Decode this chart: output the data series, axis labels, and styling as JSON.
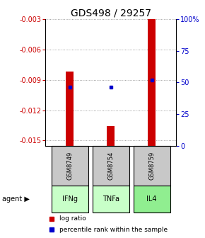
{
  "title": "GDS498 / 29257",
  "samples": [
    "GSM8749",
    "GSM8754",
    "GSM8759"
  ],
  "agents": [
    "IFNg",
    "TNFa",
    "IL4"
  ],
  "log_ratios": [
    -0.0082,
    -0.01355,
    -0.003
  ],
  "percentile_ranks": [
    46,
    46,
    52
  ],
  "ylim": [
    -0.0155,
    -0.003
  ],
  "yticks_left": [
    -0.003,
    -0.006,
    -0.009,
    -0.012,
    -0.015
  ],
  "yticks_right": [
    100,
    75,
    50,
    25,
    0
  ],
  "bar_color": "#cc0000",
  "dot_color": "#0000cc",
  "sample_box_color": "#c8c8c8",
  "agent_colors": [
    "#c8ffc8",
    "#c8ffc8",
    "#90ee90"
  ],
  "bar_width": 0.18,
  "title_fontsize": 10,
  "tick_fontsize": 7,
  "legend_fontsize": 6.5,
  "grid_color": "#888888"
}
